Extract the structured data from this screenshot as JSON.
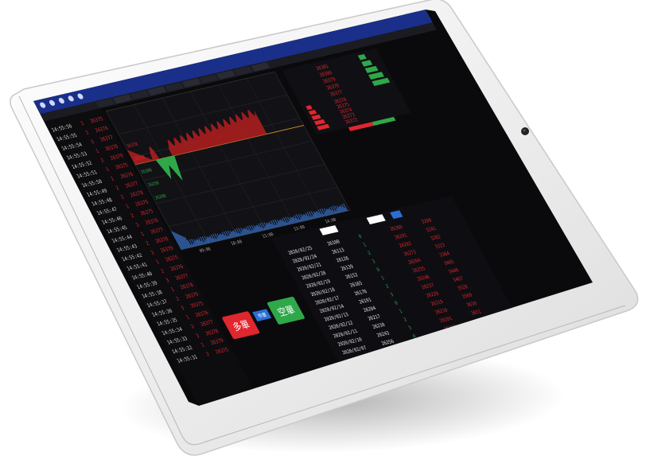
{
  "colors": {
    "frame": "#f4f4f4",
    "screen_bg": "#0a0a0c",
    "header_blue": "#1a2f8a",
    "up_red": "#e0262e",
    "down_green": "#2fa84a",
    "accent_blue": "#2a6fd6"
  },
  "header": {
    "icons": [
      "home-icon",
      "chart-icon",
      "list-icon",
      "user-icon",
      "settings-icon"
    ],
    "tabs": [
      "",
      "",
      "",
      "",
      "",
      "",
      "",
      ""
    ]
  },
  "tick_list": {
    "times": [
      "14:55:56",
      "14:55:55",
      "14:55:54",
      "14:55:53",
      "14:55:52",
      "14:55:51",
      "14:55:50",
      "14:55:49",
      "14:55:48",
      "14:55:47",
      "14:55:46",
      "14:55:45",
      "14:55:44",
      "14:55:43",
      "14:55:42",
      "14:55:41",
      "14:55:40",
      "14:55:39",
      "14:55:38",
      "14:55:37",
      "14:55:36",
      "14:55:35",
      "14:55:34",
      "14:55:33",
      "14:55:32",
      "14:55:31"
    ]
  },
  "chart": {
    "x_ticks": [
      "09:00",
      "10:00",
      "11:00",
      "13:00",
      "14:00"
    ],
    "left_labels": [
      "26378",
      "26350",
      "26300",
      "26250",
      "26200"
    ]
  },
  "order_book": {
    "asks": [
      "26381",
      "26380",
      "26379",
      "26378",
      "26377"
    ],
    "bids": [
      "26376",
      "26375",
      "26374",
      "26373",
      "26372"
    ]
  },
  "trade_buttons": {
    "buy_label": "多單",
    "sell_label": "空單",
    "market_label": "市價"
  },
  "history_table": {
    "dates": [
      "2020/02/25",
      "2020/02/24",
      "2020/02/21",
      "2020/02/20",
      "2020/02/19",
      "2020/02/18",
      "2020/02/17",
      "2020/02/14",
      "2020/02/13",
      "2020/02/12",
      "2020/02/11",
      "2020/02/10",
      "2020/02/07"
    ]
  },
  "clock": "14:55:56"
}
